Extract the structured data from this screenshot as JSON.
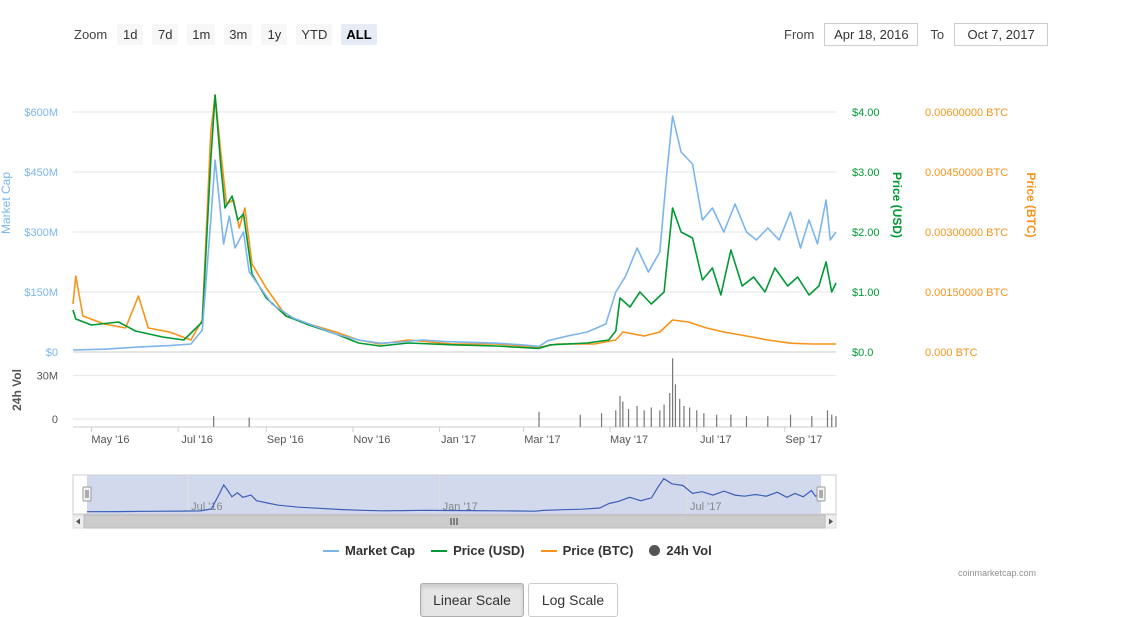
{
  "toolbar": {
    "zoom_label": "Zoom",
    "zoom_buttons": [
      "1d",
      "7d",
      "1m",
      "3m",
      "1y",
      "YTD",
      "ALL"
    ],
    "active_zoom": "ALL",
    "from_label": "From",
    "from_value": "Apr 18, 2016",
    "to_label": "To",
    "to_value": "Oct 7, 2017"
  },
  "colors": {
    "market_cap": "#7cb5ec",
    "price_usd": "#009933",
    "price_btc": "#f7931a",
    "volume": "#777777",
    "navigator_fill": "#cdd5ea",
    "navigator_line": "#3d5fb8"
  },
  "chart_data": {
    "type": "line",
    "x_axis": {
      "range": [
        "2016-04-18",
        "2017-10-07"
      ],
      "ticks": [
        "May '16",
        "Jul '16",
        "Sep '16",
        "Nov '16",
        "Jan '17",
        "Mar '17",
        "May '17",
        "Jul '17",
        "Sep '17"
      ]
    },
    "axes": {
      "market_cap": {
        "label": "Market Cap",
        "ticks": [
          "$0",
          "$150M",
          "$300M",
          "$450M",
          "$600M"
        ],
        "range": [
          0,
          600
        ]
      },
      "price_usd": {
        "label": "Price (USD)",
        "ticks": [
          "$0.0",
          "$1.00",
          "$2.00",
          "$3.00",
          "$4.00"
        ],
        "range": [
          0,
          4
        ]
      },
      "price_btc": {
        "label": "Price (BTC)",
        "ticks": [
          "0.000 BTC",
          "0.00150000 BTC",
          "0.00300000 BTC",
          "0.00450000 BTC",
          "0.00600000 BTC"
        ],
        "range": [
          0,
          0.006
        ]
      },
      "volume": {
        "label": "24h Vol",
        "ticks": [
          "0",
          "30M"
        ],
        "range": [
          0,
          45
        ]
      }
    },
    "series": [
      {
        "name": "Market Cap",
        "unit": "M USD",
        "points": [
          [
            "2016-04-18",
            5
          ],
          [
            "2016-05-10",
            7
          ],
          [
            "2016-06-01",
            12
          ],
          [
            "2016-06-25",
            16
          ],
          [
            "2016-07-10",
            20
          ],
          [
            "2016-07-18",
            55
          ],
          [
            "2016-07-24",
            330
          ],
          [
            "2016-07-27",
            480
          ],
          [
            "2016-07-30",
            380
          ],
          [
            "2016-08-02",
            270
          ],
          [
            "2016-08-06",
            340
          ],
          [
            "2016-08-10",
            260
          ],
          [
            "2016-08-16",
            300
          ],
          [
            "2016-08-20",
            200
          ],
          [
            "2016-08-28",
            160
          ],
          [
            "2016-09-05",
            120
          ],
          [
            "2016-09-20",
            85
          ],
          [
            "2016-10-05",
            65
          ],
          [
            "2016-10-20",
            45
          ],
          [
            "2016-11-05",
            30
          ],
          [
            "2016-11-20",
            22
          ],
          [
            "2016-12-05",
            25
          ],
          [
            "2016-12-20",
            30
          ],
          [
            "2017-01-05",
            26
          ],
          [
            "2017-01-25",
            24
          ],
          [
            "2017-02-10",
            22
          ],
          [
            "2017-02-28",
            18
          ],
          [
            "2017-03-12",
            14
          ],
          [
            "2017-03-18",
            28
          ],
          [
            "2017-04-01",
            40
          ],
          [
            "2017-04-15",
            50
          ],
          [
            "2017-04-28",
            70
          ],
          [
            "2017-05-05",
            150
          ],
          [
            "2017-05-12",
            190
          ],
          [
            "2017-05-20",
            260
          ],
          [
            "2017-05-28",
            200
          ],
          [
            "2017-06-05",
            250
          ],
          [
            "2017-06-10",
            450
          ],
          [
            "2017-06-14",
            590
          ],
          [
            "2017-06-20",
            500
          ],
          [
            "2017-06-28",
            470
          ],
          [
            "2017-07-05",
            330
          ],
          [
            "2017-07-12",
            360
          ],
          [
            "2017-07-20",
            300
          ],
          [
            "2017-07-28",
            370
          ],
          [
            "2017-08-05",
            300
          ],
          [
            "2017-08-12",
            280
          ],
          [
            "2017-08-20",
            310
          ],
          [
            "2017-08-28",
            280
          ],
          [
            "2017-09-05",
            350
          ],
          [
            "2017-09-12",
            260
          ],
          [
            "2017-09-18",
            330
          ],
          [
            "2017-09-24",
            270
          ],
          [
            "2017-09-30",
            380
          ],
          [
            "2017-10-03",
            280
          ],
          [
            "2017-10-07",
            300
          ]
        ]
      },
      {
        "name": "Price (USD)",
        "unit": "USD",
        "points": [
          [
            "2016-04-18",
            0.7
          ],
          [
            "2016-04-20",
            0.55
          ],
          [
            "2016-05-01",
            0.45
          ],
          [
            "2016-05-20",
            0.5
          ],
          [
            "2016-06-01",
            0.35
          ],
          [
            "2016-06-20",
            0.25
          ],
          [
            "2016-07-05",
            0.2
          ],
          [
            "2016-07-18",
            0.5
          ],
          [
            "2016-07-24",
            3.2
          ],
          [
            "2016-07-27",
            4.3
          ],
          [
            "2016-07-31",
            3.1
          ],
          [
            "2016-08-03",
            2.4
          ],
          [
            "2016-08-08",
            2.6
          ],
          [
            "2016-08-12",
            2.2
          ],
          [
            "2016-08-16",
            2.3
          ],
          [
            "2016-08-22",
            1.3
          ],
          [
            "2016-09-01",
            0.9
          ],
          [
            "2016-09-15",
            0.6
          ],
          [
            "2016-10-01",
            0.45
          ],
          [
            "2016-10-20",
            0.3
          ],
          [
            "2016-11-05",
            0.15
          ],
          [
            "2016-11-20",
            0.1
          ],
          [
            "2016-12-10",
            0.15
          ],
          [
            "2017-01-10",
            0.12
          ],
          [
            "2017-02-10",
            0.1
          ],
          [
            "2017-03-12",
            0.06
          ],
          [
            "2017-03-20",
            0.12
          ],
          [
            "2017-04-15",
            0.15
          ],
          [
            "2017-04-30",
            0.2
          ],
          [
            "2017-05-05",
            0.35
          ],
          [
            "2017-05-08",
            0.9
          ],
          [
            "2017-05-15",
            0.75
          ],
          [
            "2017-05-22",
            1.0
          ],
          [
            "2017-05-30",
            0.8
          ],
          [
            "2017-06-08",
            1.0
          ],
          [
            "2017-06-14",
            2.4
          ],
          [
            "2017-06-20",
            2.0
          ],
          [
            "2017-06-28",
            1.9
          ],
          [
            "2017-07-05",
            1.2
          ],
          [
            "2017-07-12",
            1.4
          ],
          [
            "2017-07-18",
            0.95
          ],
          [
            "2017-07-25",
            1.7
          ],
          [
            "2017-08-02",
            1.1
          ],
          [
            "2017-08-10",
            1.25
          ],
          [
            "2017-08-18",
            1.0
          ],
          [
            "2017-08-25",
            1.4
          ],
          [
            "2017-09-03",
            1.1
          ],
          [
            "2017-09-10",
            1.25
          ],
          [
            "2017-09-18",
            0.95
          ],
          [
            "2017-09-25",
            1.1
          ],
          [
            "2017-09-30",
            1.5
          ],
          [
            "2017-10-04",
            1.0
          ],
          [
            "2017-10-07",
            1.15
          ]
        ]
      },
      {
        "name": "Price (BTC)",
        "unit": "BTC",
        "points": [
          [
            "2016-04-18",
            0.0012
          ],
          [
            "2016-04-20",
            0.0019
          ],
          [
            "2016-04-25",
            0.0009
          ],
          [
            "2016-05-10",
            0.0007
          ],
          [
            "2016-05-25",
            0.0006
          ],
          [
            "2016-06-03",
            0.0014
          ],
          [
            "2016-06-10",
            0.0006
          ],
          [
            "2016-06-25",
            0.0005
          ],
          [
            "2016-07-10",
            0.0003
          ],
          [
            "2016-07-18",
            0.0008
          ],
          [
            "2016-07-24",
            0.0055
          ],
          [
            "2016-07-27",
            0.0065
          ],
          [
            "2016-07-31",
            0.005
          ],
          [
            "2016-08-04",
            0.0037
          ],
          [
            "2016-08-09",
            0.0038
          ],
          [
            "2016-08-13",
            0.0031
          ],
          [
            "2016-08-17",
            0.0036
          ],
          [
            "2016-08-22",
            0.0022
          ],
          [
            "2016-09-01",
            0.0016
          ],
          [
            "2016-09-15",
            0.0009
          ],
          [
            "2016-10-01",
            0.0007
          ],
          [
            "2016-10-20",
            0.0005
          ],
          [
            "2016-11-05",
            0.0003
          ],
          [
            "2016-11-20",
            0.0002
          ],
          [
            "2016-12-10",
            0.0003
          ],
          [
            "2017-01-10",
            0.0002
          ],
          [
            "2017-02-10",
            0.0002
          ],
          [
            "2017-03-12",
            0.00012
          ],
          [
            "2017-03-25",
            0.0002
          ],
          [
            "2017-04-20",
            0.0002
          ],
          [
            "2017-05-05",
            0.0003
          ],
          [
            "2017-05-10",
            0.0005
          ],
          [
            "2017-05-25",
            0.0004
          ],
          [
            "2017-06-05",
            0.0005
          ],
          [
            "2017-06-14",
            0.0008
          ],
          [
            "2017-06-25",
            0.00075
          ],
          [
            "2017-07-08",
            0.0006
          ],
          [
            "2017-07-20",
            0.0005
          ],
          [
            "2017-08-05",
            0.0004
          ],
          [
            "2017-08-20",
            0.0003
          ],
          [
            "2017-09-05",
            0.00022
          ],
          [
            "2017-09-20",
            0.0002
          ],
          [
            "2017-10-07",
            0.0002
          ]
        ]
      },
      {
        "name": "24h Vol",
        "unit": "M USD",
        "points": [
          [
            "2016-07-26",
            2
          ],
          [
            "2016-08-20",
            1
          ],
          [
            "2017-03-12",
            5
          ],
          [
            "2017-04-10",
            3
          ],
          [
            "2017-04-25",
            4
          ],
          [
            "2017-05-05",
            6
          ],
          [
            "2017-05-08",
            16
          ],
          [
            "2017-05-10",
            12
          ],
          [
            "2017-05-14",
            7
          ],
          [
            "2017-05-20",
            9
          ],
          [
            "2017-05-25",
            6
          ],
          [
            "2017-05-30",
            8
          ],
          [
            "2017-06-05",
            6
          ],
          [
            "2017-06-08",
            10
          ],
          [
            "2017-06-12",
            18
          ],
          [
            "2017-06-14",
            42
          ],
          [
            "2017-06-16",
            24
          ],
          [
            "2017-06-19",
            14
          ],
          [
            "2017-06-22",
            9
          ],
          [
            "2017-06-26",
            8
          ],
          [
            "2017-07-01",
            6
          ],
          [
            "2017-07-06",
            4
          ],
          [
            "2017-07-15",
            3
          ],
          [
            "2017-07-25",
            3
          ],
          [
            "2017-08-05",
            2
          ],
          [
            "2017-08-20",
            2
          ],
          [
            "2017-09-05",
            3
          ],
          [
            "2017-09-20",
            2
          ],
          [
            "2017-10-01",
            6
          ],
          [
            "2017-10-04",
            3
          ],
          [
            "2017-10-07",
            2
          ]
        ]
      }
    ],
    "navigator": {
      "ticks": [
        "Jul '16",
        "Jan '17",
        "Jul '17"
      ]
    },
    "legend": {
      "placement": "bottom-center",
      "items": [
        "Market Cap",
        "Price (USD)",
        "Price (BTC)",
        "24h Vol"
      ]
    },
    "grid": true
  },
  "credits": "coinmarketcap.com",
  "scale_buttons": {
    "linear": "Linear Scale",
    "log": "Log Scale",
    "active": "Linear Scale"
  },
  "icons": {
    "navigator_left_arrow": "triangle-left-icon",
    "navigator_right_arrow": "triangle-right-icon",
    "scrollbar_grip": "grip-icon",
    "handle": "drag-handle-icon"
  }
}
